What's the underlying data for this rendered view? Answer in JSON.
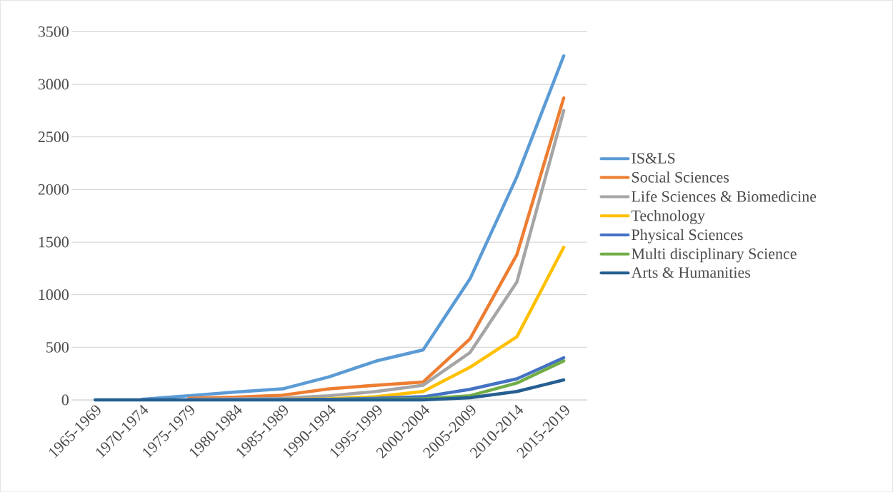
{
  "chart_data": {
    "type": "line",
    "categories": [
      "1965-1969",
      "1970-1974",
      "1975-1979",
      "1980-1984",
      "1985-1989",
      "1990-1994",
      "1995-1999",
      "2000-2004",
      "2005-2009",
      "2010-2014",
      "2015-2019"
    ],
    "series": [
      {
        "name": "IS&LS",
        "color": "#5b9bd5",
        "values": [
          null,
          5,
          40,
          75,
          105,
          220,
          370,
          475,
          1150,
          2120,
          3270
        ]
      },
      {
        "name": "Social Sciences",
        "color": "#ed7d31",
        "values": [
          null,
          null,
          15,
          25,
          45,
          105,
          140,
          170,
          580,
          1380,
          2870
        ]
      },
      {
        "name": "Life Sciences & Biomedicine",
        "color": "#a5a5a5",
        "values": [
          null,
          null,
          5,
          10,
          15,
          40,
          80,
          140,
          450,
          1120,
          2750
        ]
      },
      {
        "name": "Technology",
        "color": "#ffc000",
        "values": [
          null,
          null,
          null,
          null,
          5,
          10,
          30,
          80,
          310,
          600,
          1450
        ]
      },
      {
        "name": "Physical Sciences",
        "color": "#4472c4",
        "values": [
          null,
          null,
          null,
          null,
          2,
          5,
          15,
          30,
          100,
          200,
          400
        ]
      },
      {
        "name": "Multi disciplinary Science",
        "color": "#70ad47",
        "values": [
          null,
          null,
          null,
          null,
          null,
          2,
          5,
          10,
          40,
          160,
          370
        ]
      },
      {
        "name": "Arts & Humanities",
        "color": "#255e91",
        "values": [
          0,
          0,
          0,
          0,
          0,
          0,
          0,
          0,
          20,
          80,
          190
        ]
      }
    ],
    "ylim": [
      0,
      3500
    ],
    "yticks": [
      0,
      500,
      1000,
      1500,
      2000,
      2500,
      3000,
      3500
    ],
    "grid": "y",
    "legend": "right",
    "marker": "none",
    "line_style": "solid"
  }
}
